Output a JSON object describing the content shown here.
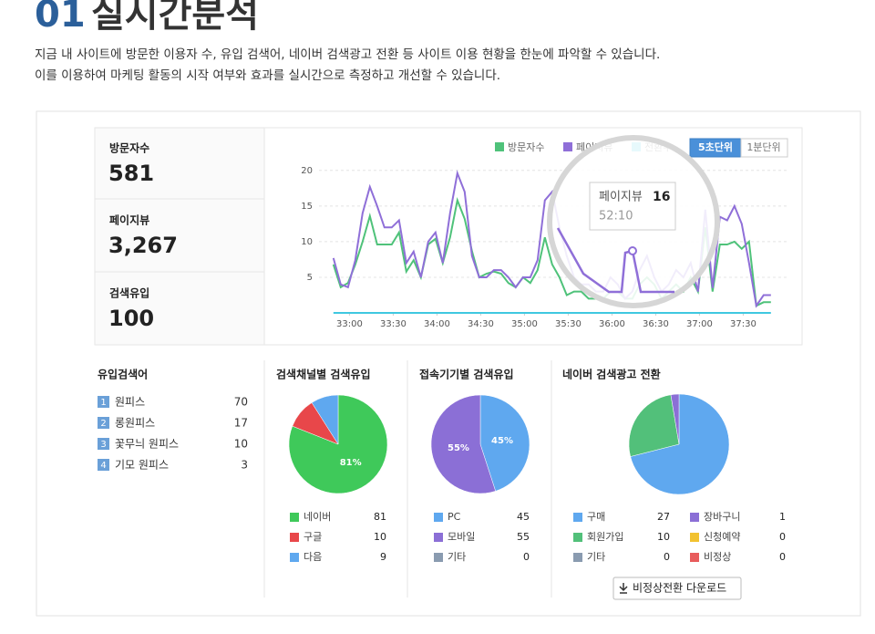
{
  "header": {
    "title_number": "01",
    "title": "실시간분석",
    "description": [
      "지금 내 사이트에 방문한 이용자 수, 유입 검색어, 네이버 검색광고 전환 등 사이트 이용 현황을 한눈에 파악할 수 있습니다.",
      "이를 이용하여 마케팅 활동의 시작 여부와 효과를 실시간으로 측정하고 개선할 수 있습니다."
    ]
  },
  "stats": [
    {
      "label": "방문자수",
      "value": "581"
    },
    {
      "label": "페이지뷰",
      "value": "3,267"
    },
    {
      "label": "검색유입",
      "value": "100"
    }
  ],
  "chart_data": [
    {
      "type": "line",
      "buttons": [
        "5초단위",
        "1분단위"
      ],
      "x": [
        1969,
        1974,
        1979,
        1984,
        1989,
        1994,
        1999,
        2004,
        2009,
        2014,
        2019,
        2024,
        2029,
        2034,
        2039,
        2044,
        2049,
        2054,
        2059,
        2064,
        2069,
        2074,
        2079,
        2084,
        2089,
        2094,
        2099,
        2104,
        2109,
        2114,
        2119,
        2124,
        2129,
        2134,
        2139,
        2144,
        2149,
        2154,
        2159,
        2164,
        2169,
        2174,
        2179,
        2184,
        2189,
        2194,
        2199,
        2204,
        2209,
        2214,
        2219,
        2224,
        2229,
        2234,
        2239,
        2244,
        2249,
        2254,
        2259,
        2264,
        2269
      ],
      "xlim": [
        1931,
        2281
      ],
      "xticks": [
        {
          "value": 1980,
          "label": "33:00"
        },
        {
          "value": 2010,
          "label": "33:30"
        },
        {
          "value": 2040,
          "label": "34:00"
        },
        {
          "value": 2070,
          "label": "34:30"
        },
        {
          "value": 2100,
          "label": "35:00"
        },
        {
          "value": 2130,
          "label": "35:30"
        },
        {
          "value": 2160,
          "label": "36:00"
        },
        {
          "value": 2190,
          "label": "36:30"
        },
        {
          "value": 2220,
          "label": "37:00"
        },
        {
          "value": 2250,
          "label": "37:30"
        }
      ],
      "ylim": [
        0,
        21
      ],
      "yticks": [
        5,
        10,
        15,
        20
      ],
      "grid": true,
      "series": [
        {
          "name": "방문자수",
          "color": "#4fc27a",
          "values": [
            6.8,
            3.6,
            4.2,
            6.8,
            10,
            13.6,
            9.6,
            9.6,
            9.6,
            11.3,
            5.8,
            7.4,
            5,
            9.6,
            10.4,
            7,
            10.6,
            15.8,
            13.2,
            8.7,
            5,
            5.5,
            5.8,
            5.5,
            4.2,
            3.6,
            5,
            4.2,
            6,
            10.6,
            6.8,
            5,
            2.5,
            3,
            3,
            2,
            2,
            2,
            3,
            3,
            2,
            2,
            4,
            5,
            4,
            2,
            3,
            4,
            3,
            5,
            3,
            12,
            3,
            9.6,
            9.6,
            10,
            9,
            10,
            1,
            1.5,
            1.5
          ]
        },
        {
          "name": "페이지뷰",
          "color": "#8f6fd8",
          "values": [
            7.7,
            4,
            3.6,
            7.4,
            14,
            17.7,
            15,
            12,
            12,
            13,
            7,
            8.6,
            5,
            10,
            11.3,
            7,
            14,
            19.6,
            17,
            8,
            5,
            5,
            6,
            6,
            5,
            3.6,
            5,
            5,
            7.4,
            15.8,
            17,
            12,
            8,
            5,
            4,
            4,
            3,
            3,
            5,
            4,
            2,
            3,
            6,
            8,
            5,
            3,
            4,
            6,
            5,
            7,
            3,
            14.5,
            3.5,
            13.5,
            13,
            15,
            12.5,
            7,
            1,
            2.5,
            2.5
          ]
        },
        {
          "name": "전환수",
          "color": "#3fc8e0",
          "values": [
            0,
            0,
            0,
            0,
            0,
            0,
            0,
            0,
            0,
            0,
            0,
            0,
            0,
            0,
            0,
            0,
            0,
            0,
            0,
            0,
            0,
            0,
            0,
            0,
            0,
            0,
            0,
            0,
            0,
            0,
            0,
            0,
            0,
            0,
            0,
            0,
            0,
            0,
            0,
            0,
            0,
            0,
            0,
            0,
            0,
            0,
            0,
            0,
            0,
            0,
            0,
            0,
            0,
            0,
            0,
            0,
            0,
            0,
            0,
            0,
            0
          ]
        }
      ],
      "tooltip": {
        "title": "페이지뷰",
        "value": 16,
        "time": "52:10"
      }
    },
    {
      "type": "pie",
      "title": "검색채널별 검색유입",
      "categories": [
        "네이버",
        "구글",
        "다음"
      ],
      "values": [
        81,
        10,
        9
      ],
      "colors": [
        "#3fc95a",
        "#e8474a",
        "#5fa8ef"
      ],
      "value_labels": [
        "81%",
        null,
        null
      ]
    },
    {
      "type": "pie",
      "title": "접속기기별 검색유입",
      "categories": [
        "PC",
        "모바일",
        "기타"
      ],
      "values": [
        45,
        55,
        0
      ],
      "colors": [
        "#5fa8ef",
        "#8b6fd6",
        "#8a9bb0"
      ],
      "value_labels": [
        "45%",
        "55%",
        null
      ]
    },
    {
      "type": "pie",
      "title": "네이버 검색광고 전환",
      "categories": [
        "구매",
        "회원가입",
        "기타",
        "장바구니",
        "신청예약",
        "비정상"
      ],
      "values": [
        27,
        10,
        0,
        1,
        0,
        0
      ],
      "colors": [
        "#5fa8ef",
        "#52c07a",
        "#8a9bb0",
        "#8b6fd6",
        "#f2c230",
        "#e85c5c"
      ]
    }
  ],
  "keywords": {
    "title": "유입검색어",
    "items": [
      {
        "rank": "1",
        "name": "원피스",
        "count": "70"
      },
      {
        "rank": "2",
        "name": "롱원피스",
        "count": "17"
      },
      {
        "rank": "3",
        "name": "꽃무늬 원피스",
        "count": "10"
      },
      {
        "rank": "4",
        "name": "기모 원피스",
        "count": "3"
      }
    ]
  },
  "download_button": "비정상전환 다운로드"
}
